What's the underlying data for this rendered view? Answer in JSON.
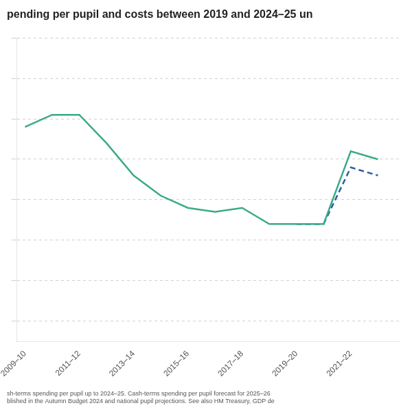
{
  "chart_data": {
    "type": "line",
    "title": "pending per pupil and costs between 2019 and 2024–25 un",
    "annotations": [
      "sh-terms spending per pupil up to 2024–25. Cash-terms spending per pupil forecast for 2025–26",
      "blished in the Autumn Budget 2024 and national pupil projections. See also HM Treasury, GDP de"
    ],
    "xlim": [
      -0.3,
      13.8
    ],
    "xticks": [
      {
        "value": 0,
        "label": "2009–10"
      },
      {
        "value": 2,
        "label": "2011–12"
      },
      {
        "value": 4,
        "label": "2013–14"
      },
      {
        "value": 6,
        "label": "2015–16"
      },
      {
        "value": 8,
        "label": "2017–18"
      },
      {
        "value": 10,
        "label": "2019–20"
      },
      {
        "value": 12,
        "label": "2021–22"
      }
    ],
    "ylim": [
      55,
      130
    ],
    "yticks": [
      60,
      70,
      80,
      90,
      100,
      110,
      120,
      130
    ],
    "grid": "y",
    "tick_labels": "x",
    "series": [
      {
        "x": [
          0,
          1,
          2,
          3,
          4,
          5,
          6,
          7,
          8,
          9,
          10,
          11,
          12,
          13
        ],
        "values": [
          108,
          111,
          111,
          104,
          96,
          91,
          88,
          87,
          88,
          84,
          84,
          84,
          102,
          100
        ],
        "color": "#3aaa8a",
        "line_style": "solid"
      },
      {
        "x": [
          10,
          11,
          12,
          13
        ],
        "values": [
          84,
          84,
          98,
          96
        ],
        "color": "#2e5fa3",
        "line_style": "dashed"
      }
    ]
  }
}
